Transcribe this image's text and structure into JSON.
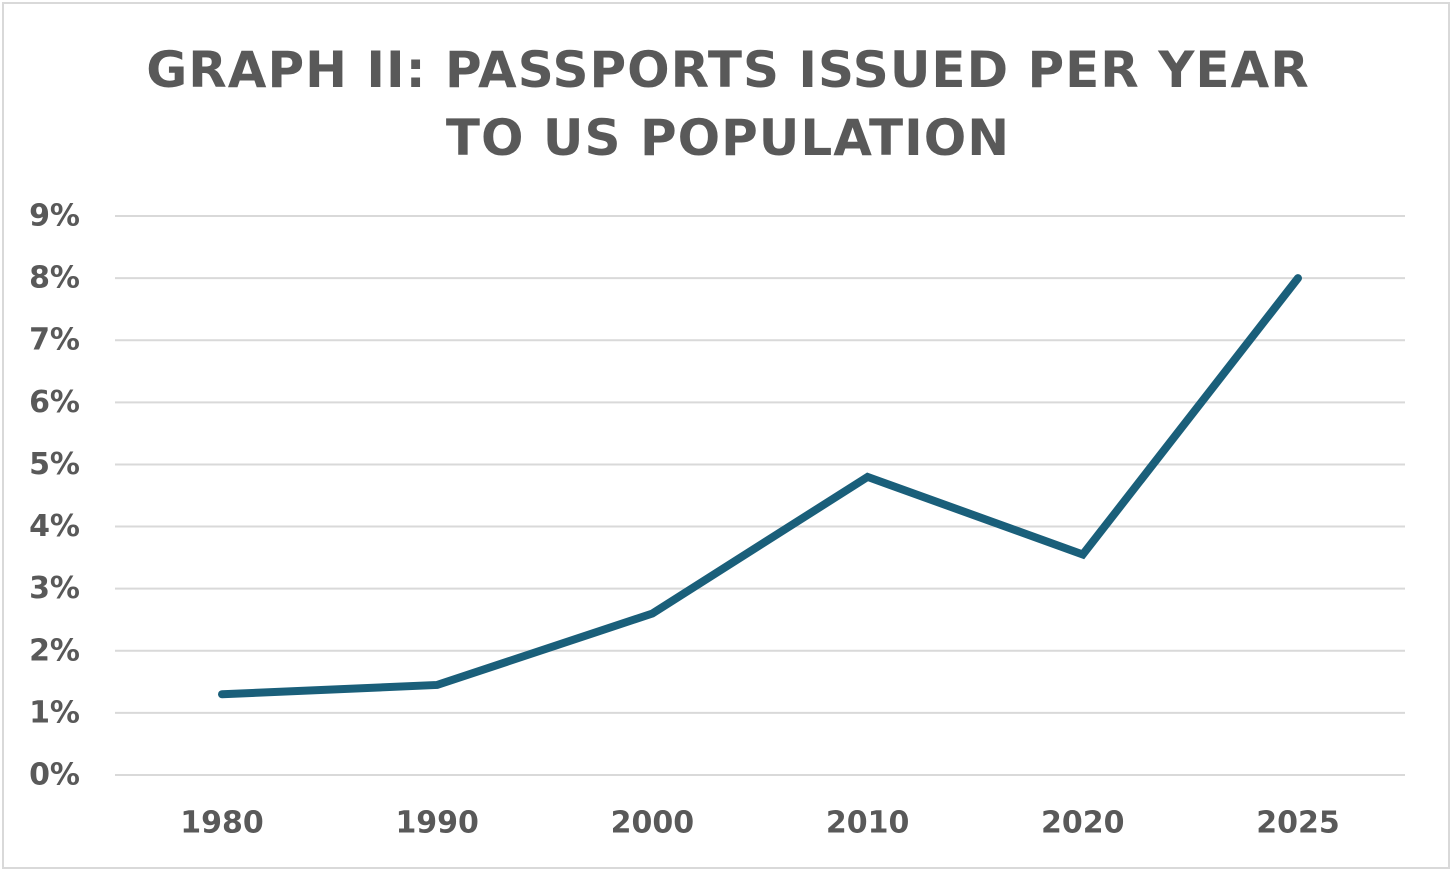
{
  "chart_data": {
    "type": "line",
    "title_lines": [
      "Graph II: Passports Issued Per Year",
      "to US Population"
    ],
    "xlabel": "",
    "ylabel": "",
    "categories": [
      "1980",
      "1990",
      "2000",
      "2010",
      "2020",
      "2025"
    ],
    "series": [
      {
        "values": [
          1.3,
          1.45,
          2.6,
          4.8,
          3.55,
          8.0
        ],
        "color": "#1a5f7a"
      }
    ],
    "ylim": [
      0,
      9
    ],
    "yticks": [
      "0%",
      "1%",
      "2%",
      "3%",
      "4%",
      "5%",
      "6%",
      "7%",
      "8%",
      "9%"
    ],
    "grid": true,
    "legend": "none",
    "colors": {
      "line": "#1a5f7a",
      "grid": "#d9d9d9",
      "text": "#595959"
    }
  }
}
